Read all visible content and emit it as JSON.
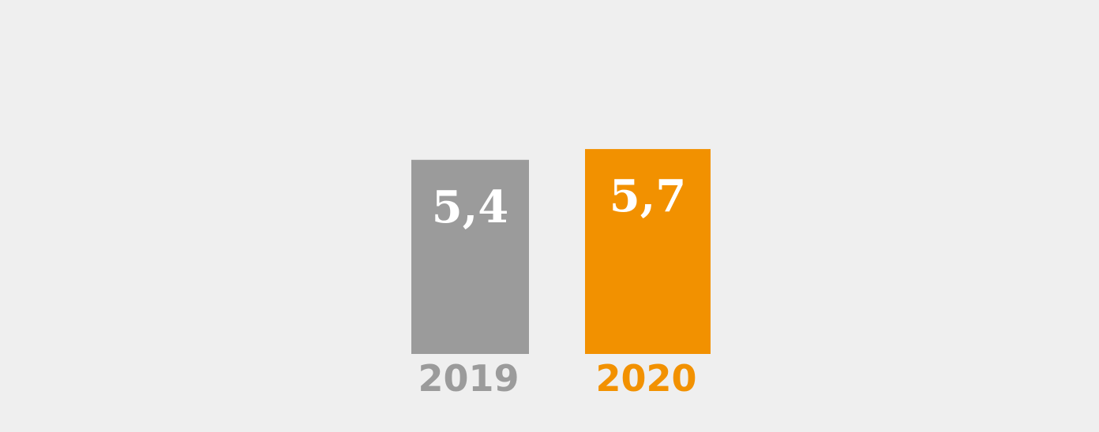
{
  "chart_data": {
    "type": "bar",
    "categories": [
      "2019",
      "2020"
    ],
    "values": [
      5.4,
      5.7
    ],
    "value_labels": [
      "5,4",
      "5,7"
    ],
    "colors": [
      "#9b9b9b",
      "#f29100"
    ],
    "title": "",
    "xlabel": "",
    "ylabel": "",
    "ylim": [
      0,
      7
    ],
    "grid": false,
    "legend": "none"
  }
}
